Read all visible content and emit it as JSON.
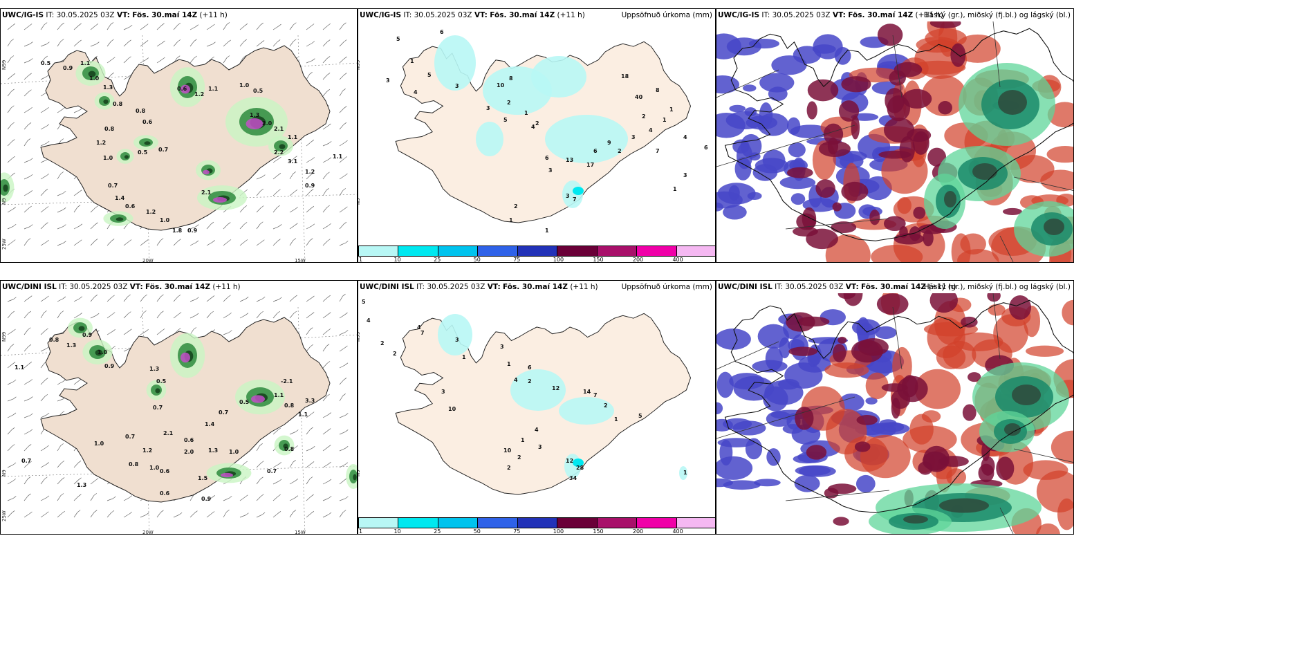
{
  "panels": [
    {
      "model": "UWC/IG-IS",
      "it_label": "IT:",
      "it_value": "30.05.2025 03Z",
      "vt_label": "VT:",
      "vt_value": "Fös. 30.maí 14Z",
      "lead": "(+11 h)",
      "right_title": "",
      "axis_labels": [
        "20W",
        "15W",
        "N99",
        "N9",
        "25W"
      ]
    },
    {
      "model": "UWC/IG-IS",
      "it_label": "IT:",
      "it_value": "30.05.2025 03Z",
      "vt_label": "VT:",
      "vt_value": "Fös. 30.maí 14Z",
      "lead": "(+11 h)",
      "right_title": "Uppsöfnuð úrkoma (mm)",
      "axis_labels": [
        "N99",
        "N9"
      ]
    },
    {
      "model": "UWC/IG-IS",
      "it_label": "IT:",
      "it_value": "30.05.2025 03Z",
      "vt_label": "VT:",
      "vt_value": "Fös. 30.maí 14Z",
      "lead": "(+11 h)",
      "right_title": "Háský (gr.), miðský (fj.bl.) og lágský (bl.)",
      "axis_labels": []
    },
    {
      "model": "UWC/DINI ISL",
      "it_label": "IT:",
      "it_value": "30.05.2025 03Z",
      "vt_label": "VT:",
      "vt_value": "Fös. 30.maí 14Z",
      "lead": "(+11 h)",
      "right_title": "",
      "axis_labels": [
        "20W",
        "15W",
        "N99",
        "N9",
        "25W"
      ]
    },
    {
      "model": "UWC/DINI ISL",
      "it_label": "IT:",
      "it_value": "30.05.2025 03Z",
      "vt_label": "VT:",
      "vt_value": "Fös. 30.maí 14Z",
      "lead": "(+11 h)",
      "right_title": "Uppsöfnuð úrkoma (mm)",
      "axis_labels": [
        "N99",
        "N9"
      ]
    },
    {
      "model": "UWC/DINI ISL",
      "it_label": "IT:",
      "it_value": "30.05.2025 03Z",
      "vt_label": "VT:",
      "vt_value": "Fös. 30.maí 14Z",
      "lead": "(+11 h)",
      "right_title": "Háský (gr.), miðský (fj.bl.) og lágský (bl.)",
      "axis_labels": []
    }
  ],
  "colorbar": {
    "labels": [
      "1",
      "10",
      "25",
      "50",
      "75",
      "100",
      "150",
      "200",
      "400"
    ],
    "colors": [
      "#b8f7f5",
      "#00e8f0",
      "#00c3ee",
      "#2f62e8",
      "#2232b8",
      "#6a0038",
      "#a8106a",
      "#f000a8",
      "#f5b8f2"
    ]
  },
  "precip_labels_top": [
    "6",
    "5",
    "1",
    "5",
    "3",
    "4",
    "3",
    "10",
    "8",
    "2",
    "3",
    "5",
    "2",
    "1",
    "4",
    "6",
    "3",
    "13",
    "17",
    "6",
    "9",
    "2",
    "3",
    "7",
    "4",
    "1",
    "2",
    "18",
    "40",
    "8",
    "1",
    "4",
    "6",
    "3",
    "1",
    "3",
    "7",
    "2",
    "1",
    "1"
  ],
  "precip_labels_bottom": [
    "5",
    "4",
    "2",
    "2",
    "4",
    "7",
    "3",
    "1",
    "3",
    "10",
    "3",
    "1",
    "4",
    "6",
    "2",
    "12",
    "14",
    "7",
    "2",
    "1",
    "5",
    "12",
    "28",
    "34",
    "1",
    "10",
    "2",
    "3",
    "1",
    "2",
    "4"
  ],
  "rain_labels_top": [
    "0.5",
    "0.9",
    "1.1",
    "1.0",
    "1.3",
    "0.8",
    "0.8",
    "0.6",
    "0.5",
    "0.7",
    "0.6",
    "1.2",
    "1.1",
    "1.0",
    "0.5",
    "1.3",
    "2.0",
    "2.1",
    "1.1",
    "2.2",
    "3.1",
    "1.2",
    "1.1",
    "0.9",
    "0.8",
    "1.2",
    "1.0",
    "0.7",
    "1.4",
    "0.6",
    "1.2",
    "1.0",
    "2.1",
    "0.9",
    "1.8"
  ],
  "rain_labels_bottom": [
    "1.1",
    "0.8",
    "1.3",
    "0.9",
    "1.0",
    "0.9",
    "1.3",
    "0.5",
    "0.7",
    "2.1",
    "0.7",
    "1.2",
    "1.0",
    "0.8",
    "0.6",
    "2.0",
    "0.6",
    "1.4",
    "1.3",
    "0.7",
    "0.5",
    "1.1",
    "0.8",
    "1.1",
    "-2.1",
    "3.3",
    "0.8",
    "0.7",
    "1.0",
    "1.5",
    "0.6",
    "0.9",
    "1.0",
    "1.3",
    "0.7"
  ]
}
